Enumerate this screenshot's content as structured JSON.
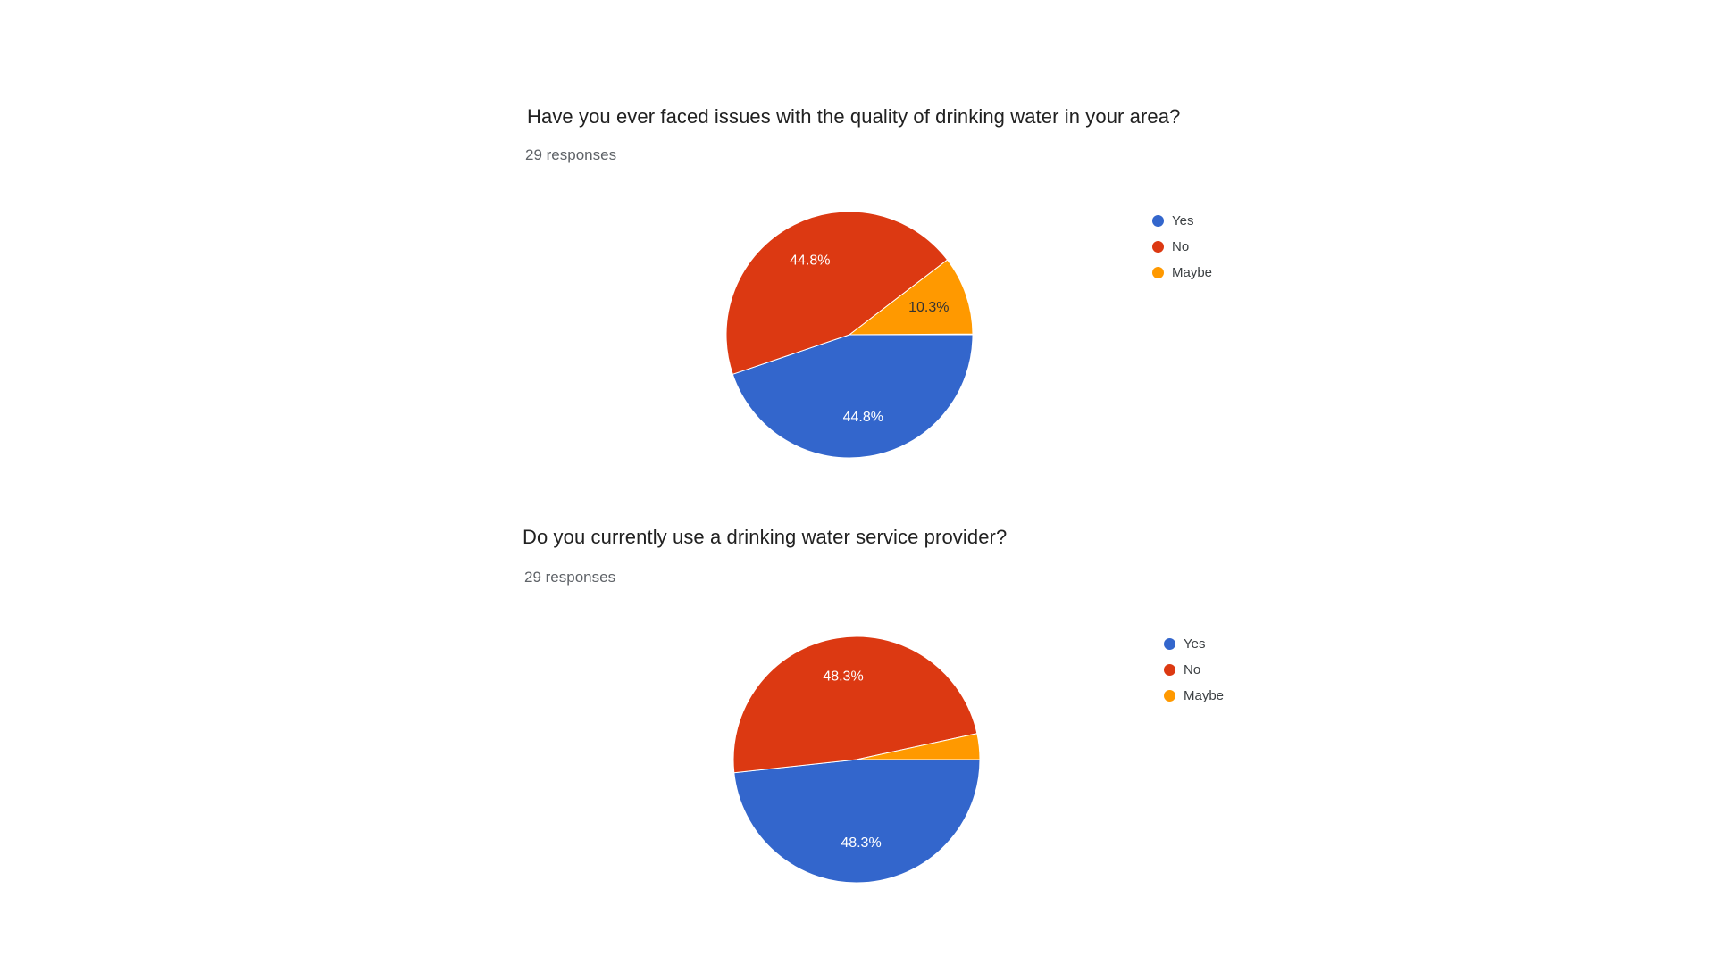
{
  "page": {
    "background": "#ffffff"
  },
  "charts": [
    {
      "title": "Have you ever faced issues with the quality of drinking water in your area?",
      "responses_label": "29 responses",
      "chart_data": {
        "type": "pie",
        "labels": [
          "Yes",
          "No",
          "Maybe"
        ],
        "percentages": [
          44.8,
          44.8,
          10.3
        ],
        "slice_labels": [
          "44.8%",
          "44.8%",
          "10.3%"
        ],
        "colors": [
          "#3366cc",
          "#dc3912",
          "#ff9900"
        ],
        "slice_label_colors": [
          "#ffffff",
          "#ffffff",
          "#333333"
        ],
        "start_angle_deg": 90,
        "legend_position": "right",
        "legend_entries": [
          "Yes",
          "No",
          "Maybe"
        ]
      }
    },
    {
      "title": "Do you currently use a drinking water service provider?",
      "responses_label": "29 responses",
      "chart_data": {
        "type": "pie",
        "labels": [
          "Yes",
          "No",
          "Maybe"
        ],
        "percentages": [
          48.3,
          48.3,
          3.4
        ],
        "slice_labels": [
          "48.3%",
          "48.3%",
          ""
        ],
        "colors": [
          "#3366cc",
          "#dc3912",
          "#ff9900"
        ],
        "slice_label_colors": [
          "#ffffff",
          "#ffffff",
          "#333333"
        ],
        "start_angle_deg": 90,
        "legend_position": "right",
        "legend_entries": [
          "Yes",
          "No",
          "Maybe"
        ]
      }
    }
  ]
}
